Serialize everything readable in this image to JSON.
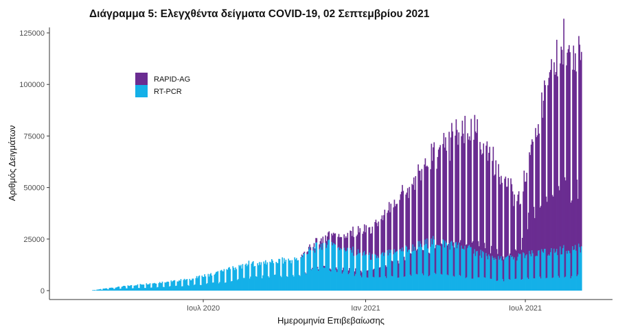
{
  "chart_data": {
    "type": "bar",
    "stacked": true,
    "title": "Διάγραμμα 5: Ελεγχθέντα δείγματα COVID-19, 02 Σεπτεμβρίου 2021",
    "xlabel": "Ημερομηνία Επιβεβαίωσης",
    "ylabel": "Αριθμός Δειγμάτων",
    "ylim": [
      0,
      125000
    ],
    "y_ticks": [
      0,
      25000,
      50000,
      75000,
      100000,
      125000
    ],
    "y_tick_labels": [
      "0",
      "25000",
      "50000",
      "75000",
      "100000",
      "125000"
    ],
    "xlim": [
      "2020-02-01",
      "2021-09-30"
    ],
    "x_ticks": [
      {
        "date": "2020-07-01",
        "label": "Ιουλ 2020"
      },
      {
        "date": "2021-01-01",
        "label": "Ιαν 2021"
      },
      {
        "date": "2021-07-01",
        "label": "Ιουλ 2021"
      }
    ],
    "x_start_date": "2020-02-26",
    "x_end_date": "2021-09-02",
    "legend": {
      "position": "top-left",
      "entries": [
        "RAPID-AG",
        "RT-PCR"
      ]
    },
    "grid": false,
    "series": [
      {
        "name": "RAPID-AG",
        "color": "#6a2c91",
        "keyframes": [
          {
            "date": "2020-02-26",
            "weekday": 0,
            "weekend": 0
          },
          {
            "date": "2020-10-15",
            "weekday": 0,
            "weekend": 0
          },
          {
            "date": "2020-11-05",
            "weekday": 2000,
            "weekend": 500
          },
          {
            "date": "2020-11-20",
            "weekday": 4000,
            "weekend": 1000
          },
          {
            "date": "2020-12-10",
            "weekday": 7000,
            "weekend": 2000
          },
          {
            "date": "2020-12-31",
            "weekday": 12000,
            "weekend": 3000
          },
          {
            "date": "2021-01-20",
            "weekday": 18000,
            "weekend": 5000
          },
          {
            "date": "2021-02-20",
            "weekday": 30000,
            "weekend": 10000
          },
          {
            "date": "2021-03-15",
            "weekday": 40000,
            "weekend": 12000
          },
          {
            "date": "2021-04-10",
            "weekday": 52000,
            "weekend": 15000
          },
          {
            "date": "2021-05-05",
            "weekday": 58000,
            "weekend": 16000
          },
          {
            "date": "2021-05-25",
            "weekday": 48000,
            "weekend": 14000
          },
          {
            "date": "2021-06-10",
            "weekday": 35000,
            "weekend": 12000
          },
          {
            "date": "2021-06-25",
            "weekday": 25000,
            "weekend": 15000
          },
          {
            "date": "2021-07-05",
            "weekday": 50000,
            "weekend": 30000
          },
          {
            "date": "2021-07-25",
            "weekday": 75000,
            "weekend": 40000
          },
          {
            "date": "2021-08-10",
            "weekday": 97000,
            "weekend": 45000
          },
          {
            "date": "2021-08-25",
            "weekday": 100000,
            "weekend": 42000
          },
          {
            "date": "2021-09-02",
            "weekday": 86000,
            "weekend": 40000
          }
        ]
      },
      {
        "name": "RT-PCR",
        "color": "#14b0e8",
        "keyframes": [
          {
            "date": "2020-02-26",
            "weekday": 200,
            "weekend": 100
          },
          {
            "date": "2020-03-20",
            "weekday": 1500,
            "weekend": 800
          },
          {
            "date": "2020-05-01",
            "weekday": 3500,
            "weekend": 1500
          },
          {
            "date": "2020-06-15",
            "weekday": 5500,
            "weekend": 2500
          },
          {
            "date": "2020-07-20",
            "weekday": 9000,
            "weekend": 4000
          },
          {
            "date": "2020-08-20",
            "weekday": 13000,
            "weekend": 6000
          },
          {
            "date": "2020-09-15",
            "weekday": 14000,
            "weekend": 7000
          },
          {
            "date": "2020-10-15",
            "weekday": 15000,
            "weekend": 7000
          },
          {
            "date": "2020-11-01",
            "weekday": 20000,
            "weekend": 10000
          },
          {
            "date": "2020-11-20",
            "weekday": 24000,
            "weekend": 10000
          },
          {
            "date": "2020-12-10",
            "weekday": 20000,
            "weekend": 8000
          },
          {
            "date": "2021-01-10",
            "weekday": 16000,
            "weekend": 6000
          },
          {
            "date": "2021-02-15",
            "weekday": 20000,
            "weekend": 7000
          },
          {
            "date": "2021-03-20",
            "weekday": 24000,
            "weekend": 8000
          },
          {
            "date": "2021-04-20",
            "weekday": 21000,
            "weekend": 7000
          },
          {
            "date": "2021-06-01",
            "weekday": 15000,
            "weekend": 5000
          },
          {
            "date": "2021-07-15",
            "weekday": 18000,
            "weekend": 6000
          },
          {
            "date": "2021-09-02",
            "weekday": 21000,
            "weekend": 7000
          }
        ]
      }
    ]
  }
}
